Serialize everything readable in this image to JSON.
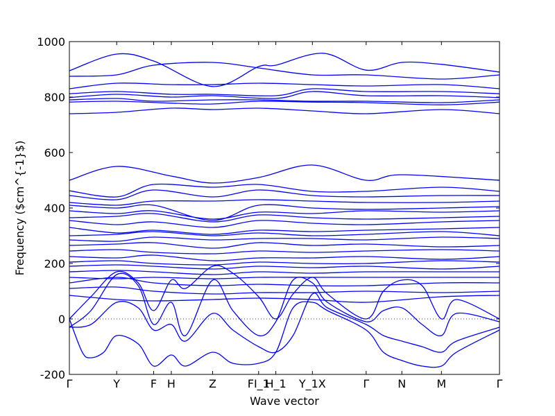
{
  "chart_data": {
    "type": "line",
    "title": "",
    "xlabel": "Wave vector",
    "ylabel": "Frequency ($cm^{-1}$)",
    "ylim": [
      -200,
      1000
    ],
    "yticks": [
      -200,
      0,
      200,
      400,
      600,
      800,
      1000
    ],
    "xlim": [
      0,
      1
    ],
    "grid": false,
    "zero_line": true,
    "color": "#0000ff",
    "high_symmetry_points": [
      {
        "label": "Γ",
        "x": 0.0
      },
      {
        "label": "Y",
        "x": 0.11
      },
      {
        "label": "F",
        "x": 0.196
      },
      {
        "label": "H",
        "x": 0.237
      },
      {
        "label": "Z",
        "x": 0.333
      },
      {
        "label": "FI_1",
        "x": 0.44
      },
      {
        "label": "H_1",
        "x": 0.48
      },
      {
        "label": "Y_1X",
        "x": 0.565
      },
      {
        "label": "Γ",
        "x": 0.69
      },
      {
        "label": "N",
        "x": 0.773
      },
      {
        "label": "M",
        "x": 0.865
      },
      {
        "label": "Γ",
        "x": 1.0
      }
    ],
    "series": [
      {
        "x": [
          0,
          0.11,
          0.196,
          0.333,
          0.44,
          0.48,
          0.59,
          0.69,
          0.773,
          0.865,
          1
        ],
        "y": [
          895,
          955,
          930,
          838,
          910,
          915,
          958,
          897,
          925,
          918,
          890
        ]
      },
      {
        "x": [
          0,
          0.11,
          0.196,
          0.333,
          0.44,
          0.565,
          0.69,
          0.865,
          1
        ],
        "y": [
          875,
          880,
          915,
          925,
          905,
          880,
          880,
          865,
          880
        ]
      },
      {
        "x": [
          0,
          0.11,
          0.237,
          0.333,
          0.44,
          0.565,
          0.69,
          0.865,
          1
        ],
        "y": [
          830,
          850,
          845,
          845,
          850,
          845,
          840,
          845,
          830
        ]
      },
      {
        "x": [
          0,
          0.11,
          0.237,
          0.333,
          0.48,
          0.565,
          0.69,
          0.865,
          1
        ],
        "y": [
          812,
          820,
          810,
          810,
          805,
          830,
          820,
          820,
          812
        ]
      },
      {
        "x": [
          0,
          0.11,
          0.237,
          0.333,
          0.48,
          0.565,
          0.69,
          0.865,
          1
        ],
        "y": [
          798,
          810,
          800,
          805,
          795,
          820,
          805,
          805,
          798
        ]
      },
      {
        "x": [
          0,
          0.11,
          0.196,
          0.333,
          0.44,
          0.565,
          0.69,
          0.865,
          1
        ],
        "y": [
          790,
          795,
          785,
          790,
          790,
          785,
          785,
          780,
          790
        ]
      },
      {
        "x": [
          0,
          0.11,
          0.237,
          0.333,
          0.44,
          0.565,
          0.69,
          0.865,
          1
        ],
        "y": [
          782,
          785,
          778,
          775,
          785,
          782,
          780,
          772,
          782
        ]
      },
      {
        "x": [
          0,
          0.11,
          0.237,
          0.333,
          0.44,
          0.565,
          0.69,
          0.865,
          1
        ],
        "y": [
          740,
          745,
          760,
          755,
          760,
          750,
          740,
          755,
          740
        ]
      },
      {
        "x": [
          0,
          0.11,
          0.237,
          0.333,
          0.44,
          0.565,
          0.69,
          0.773,
          1
        ],
        "y": [
          500,
          550,
          515,
          490,
          510,
          555,
          500,
          520,
          500
        ]
      },
      {
        "x": [
          0,
          0.11,
          0.196,
          0.333,
          0.44,
          0.565,
          0.69,
          0.865,
          1
        ],
        "y": [
          462,
          440,
          485,
          475,
          485,
          460,
          460,
          475,
          460
        ]
      },
      {
        "x": [
          0,
          0.11,
          0.196,
          0.333,
          0.44,
          0.565,
          0.69,
          0.865,
          1
        ],
        "y": [
          445,
          430,
          465,
          440,
          465,
          445,
          440,
          445,
          445
        ]
      },
      {
        "x": [
          0,
          0.11,
          0.196,
          0.333,
          0.44,
          0.565,
          0.69,
          0.865,
          1
        ],
        "y": [
          420,
          410,
          425,
          425,
          430,
          425,
          420,
          420,
          425
        ]
      },
      {
        "x": [
          0,
          0.11,
          0.196,
          0.333,
          0.44,
          0.565,
          0.69,
          0.865,
          1
        ],
        "y": [
          410,
          400,
          410,
          355,
          410,
          400,
          395,
          400,
          405
        ]
      },
      {
        "x": [
          0,
          0.11,
          0.196,
          0.333,
          0.44,
          0.565,
          0.69,
          0.865,
          1
        ],
        "y": [
          390,
          380,
          390,
          360,
          385,
          380,
          390,
          385,
          390
        ]
      },
      {
        "x": [
          0,
          0.11,
          0.196,
          0.333,
          0.44,
          0.565,
          0.69,
          0.865,
          1
        ],
        "y": [
          365,
          370,
          380,
          350,
          375,
          365,
          360,
          365,
          370
        ]
      },
      {
        "x": [
          0,
          0.11,
          0.196,
          0.333,
          0.44,
          0.565,
          0.69,
          0.865,
          1
        ],
        "y": [
          355,
          340,
          350,
          330,
          355,
          345,
          340,
          350,
          355
        ]
      },
      {
        "x": [
          0,
          0.11,
          0.196,
          0.333,
          0.44,
          0.565,
          0.69,
          0.865,
          1
        ],
        "y": [
          330,
          310,
          320,
          305,
          320,
          315,
          320,
          325,
          330
        ]
      },
      {
        "x": [
          0,
          0.11,
          0.196,
          0.333,
          0.44,
          0.565,
          0.69,
          0.865,
          1
        ],
        "y": [
          300,
          305,
          315,
          300,
          310,
          300,
          305,
          315,
          300
        ]
      },
      {
        "x": [
          0,
          0.11,
          0.196,
          0.333,
          0.44,
          0.565,
          0.69,
          0.865,
          1
        ],
        "y": [
          285,
          280,
          295,
          285,
          290,
          290,
          285,
          295,
          290
        ]
      },
      {
        "x": [
          0,
          0.11,
          0.196,
          0.333,
          0.44,
          0.565,
          0.69,
          0.865,
          1
        ],
        "y": [
          265,
          270,
          275,
          255,
          275,
          265,
          270,
          260,
          265
        ]
      },
      {
        "x": [
          0,
          0.11,
          0.196,
          0.333,
          0.44,
          0.565,
          0.69,
          0.865,
          1
        ],
        "y": [
          245,
          250,
          240,
          235,
          245,
          240,
          245,
          250,
          245
        ]
      },
      {
        "x": [
          0,
          0.11,
          0.196,
          0.333,
          0.44,
          0.565,
          0.69,
          0.865,
          1
        ],
        "y": [
          225,
          220,
          230,
          210,
          220,
          220,
          225,
          215,
          225
        ]
      },
      {
        "x": [
          0,
          0.11,
          0.196,
          0.333,
          0.44,
          0.565,
          0.69,
          0.865,
          1
        ],
        "y": [
          205,
          210,
          200,
          195,
          205,
          200,
          200,
          210,
          205
        ]
      },
      {
        "x": [
          0,
          0.11,
          0.196,
          0.333,
          0.44,
          0.565,
          0.69,
          0.865,
          1
        ],
        "y": [
          190,
          195,
          190,
          180,
          190,
          185,
          190,
          180,
          190
        ]
      },
      {
        "x": [
          0,
          0.11,
          0.196,
          0.333,
          0.44,
          0.565,
          0.69,
          0.865,
          1
        ],
        "y": [
          170,
          175,
          170,
          160,
          170,
          165,
          170,
          170,
          170
        ]
      },
      {
        "x": [
          0,
          0.11,
          0.196,
          0.333,
          0.44,
          0.565,
          0.69,
          0.865,
          1
        ],
        "y": [
          150,
          145,
          150,
          145,
          150,
          150,
          150,
          150,
          150
        ]
      },
      {
        "x": [
          0,
          0.11,
          0.196,
          0.333,
          0.44,
          0.565,
          0.69,
          0.865,
          1
        ],
        "y": [
          130,
          150,
          130,
          120,
          125,
          120,
          120,
          130,
          130
        ]
      },
      {
        "x": [
          0,
          0.11,
          0.196,
          0.333,
          0.44,
          0.565,
          0.69,
          0.865,
          1
        ],
        "y": [
          110,
          115,
          100,
          90,
          95,
          95,
          100,
          95,
          100
        ]
      },
      {
        "x": [
          0,
          0.11,
          0.196,
          0.333,
          0.44,
          0.565,
          0.69,
          0.865,
          1
        ],
        "y": [
          85,
          70,
          65,
          70,
          75,
          70,
          60,
          80,
          85
        ]
      },
      {
        "x": [
          0,
          0.05,
          0.11,
          0.16,
          0.196,
          0.237,
          0.27,
          0.333,
          0.38,
          0.44,
          0.48,
          0.52,
          0.565,
          0.6,
          0.69,
          0.73,
          0.773,
          0.82,
          0.865,
          0.9,
          1
        ],
        "y": [
          0,
          80,
          170,
          130,
          30,
          140,
          110,
          190,
          165,
          80,
          0,
          90,
          150,
          90,
          0,
          100,
          140,
          120,
          0,
          70,
          0
        ]
      },
      {
        "x": [
          0,
          0.05,
          0.11,
          0.16,
          0.196,
          0.237,
          0.27,
          0.333,
          0.38,
          0.44,
          0.48,
          0.52,
          0.565,
          0.6,
          0.69,
          0.73,
          0.773,
          0.82,
          0.865,
          0.9,
          1
        ],
        "y": [
          -30,
          30,
          160,
          120,
          -20,
          60,
          -60,
          140,
          30,
          -60,
          -10,
          140,
          130,
          60,
          -10,
          30,
          40,
          -20,
          -60,
          20,
          -10
        ]
      },
      {
        "x": [
          0,
          0.05,
          0.11,
          0.16,
          0.196,
          0.237,
          0.27,
          0.333,
          0.38,
          0.44,
          0.48,
          0.52,
          0.565,
          0.6,
          0.69,
          0.73,
          0.773,
          0.82,
          0.865,
          0.9,
          1
        ],
        "y": [
          -30,
          -20,
          60,
          40,
          -40,
          -20,
          -80,
          20,
          -40,
          -100,
          -120,
          -60,
          90,
          40,
          -20,
          -60,
          -80,
          -100,
          -120,
          -80,
          -30
        ]
      },
      {
        "x": [
          0,
          0.03,
          0.05,
          0.08,
          0.11,
          0.16,
          0.196,
          0.237,
          0.27,
          0.333,
          0.38,
          0.44,
          0.48,
          0.52,
          0.565,
          0.6,
          0.69,
          0.73,
          0.773,
          0.82,
          0.865,
          0.9,
          1
        ],
        "y": [
          0,
          -120,
          -140,
          -120,
          -60,
          -90,
          -170,
          -130,
          -170,
          -120,
          -160,
          -160,
          -120,
          40,
          60,
          30,
          -40,
          -120,
          -150,
          -170,
          -170,
          -120,
          -40
        ]
      }
    ]
  }
}
